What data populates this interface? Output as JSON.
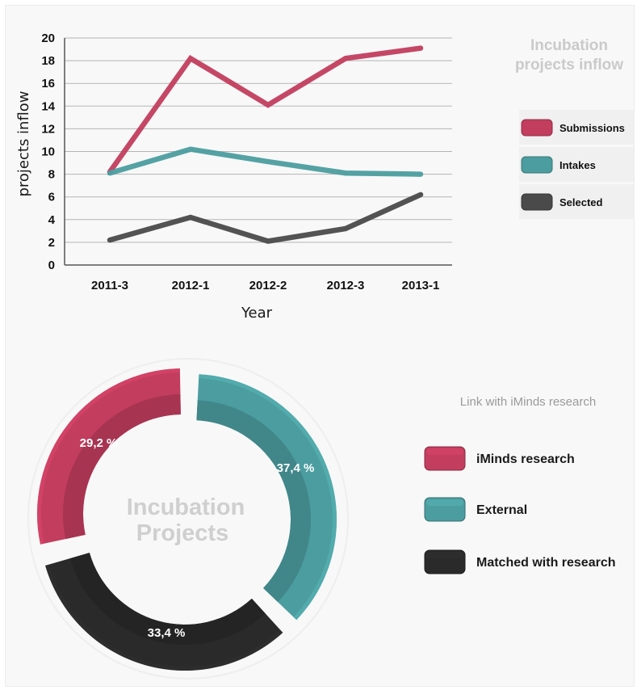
{
  "line_chart": {
    "title_lines": [
      "Incubation",
      "projects inflow"
    ],
    "xlabel": "Year",
    "ylabel": "projects inflow"
  },
  "donut_chart": {
    "subtitle": "Link with iMinds research",
    "center_lines": [
      "Incubation",
      "Projects"
    ]
  },
  "chart_data": [
    {
      "type": "line",
      "title": "Incubation projects inflow",
      "xlabel": "Year",
      "ylabel": "projects inflow",
      "categories": [
        "2011-3",
        "2012-1",
        "2012-2",
        "2012-3",
        "2013-1"
      ],
      "ylim": [
        0,
        20
      ],
      "yticks": [
        0,
        2,
        4,
        6,
        8,
        10,
        12,
        14,
        16,
        18,
        20
      ],
      "grid": true,
      "legend": "right",
      "series": [
        {
          "name": "Submissions",
          "values": [
            8.2,
            18.2,
            14.1,
            18.2,
            19.1
          ],
          "color": "#c23d5e"
        },
        {
          "name": "Intakes",
          "values": [
            8.1,
            10.2,
            9.1,
            8.1,
            8.0
          ],
          "color": "#4c9d9f"
        },
        {
          "name": "Selected",
          "values": [
            2.2,
            4.2,
            2.1,
            3.2,
            6.2
          ],
          "color": "#4a4a4a"
        }
      ]
    },
    {
      "type": "pie",
      "title": "Link with iMinds research",
      "center_label": "Incubation Projects",
      "legend": "right",
      "slices": [
        {
          "name": "iMinds research",
          "value": 29.2,
          "label": "29,2 %",
          "color": "#c23d5e"
        },
        {
          "name": "External",
          "value": 37.4,
          "label": "37,4 %",
          "color": "#4c9d9f"
        },
        {
          "name": "Matched with research",
          "value": 33.4,
          "label": "33,4 %",
          "color": "#2a2a2a"
        }
      ]
    }
  ]
}
